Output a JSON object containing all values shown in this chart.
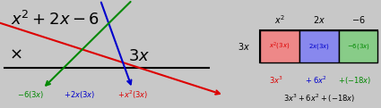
{
  "bg_color": "#c8c8c8",
  "colors": {
    "red": "#dd0000",
    "blue": "#0000cc",
    "green": "#008800",
    "black": "#000000",
    "cell_bg_red": "#ee8888",
    "cell_bg_blue": "#8888ee",
    "cell_bg_green": "#88cc88",
    "table_border": "#000000"
  },
  "left": {
    "top_text": "$x^2 + 2x - 6$",
    "mul_sym": "$\\times$",
    "mul_text": "$3x$",
    "bot_green": "$-6(3x)$",
    "bot_blue": "$+ 2x(3x)$",
    "bot_red": "$+ x^2(3x)$"
  },
  "right": {
    "col_headers": [
      "$x^2$",
      "$2x$",
      "$-6$"
    ],
    "row_header": "$3x$",
    "cells_text": [
      "$x^2(3x)$",
      "$2x(3x)$",
      "$-6(3x)$"
    ],
    "cells_color": [
      "red",
      "blue",
      "green"
    ],
    "row2_texts": [
      "$3x^3$",
      "$+\\;6x^2$",
      "$+(-18x)$"
    ],
    "row2_colors": [
      "red",
      "blue",
      "green"
    ],
    "row3_text": "$3x^3+6x^2+(-18x)$"
  }
}
